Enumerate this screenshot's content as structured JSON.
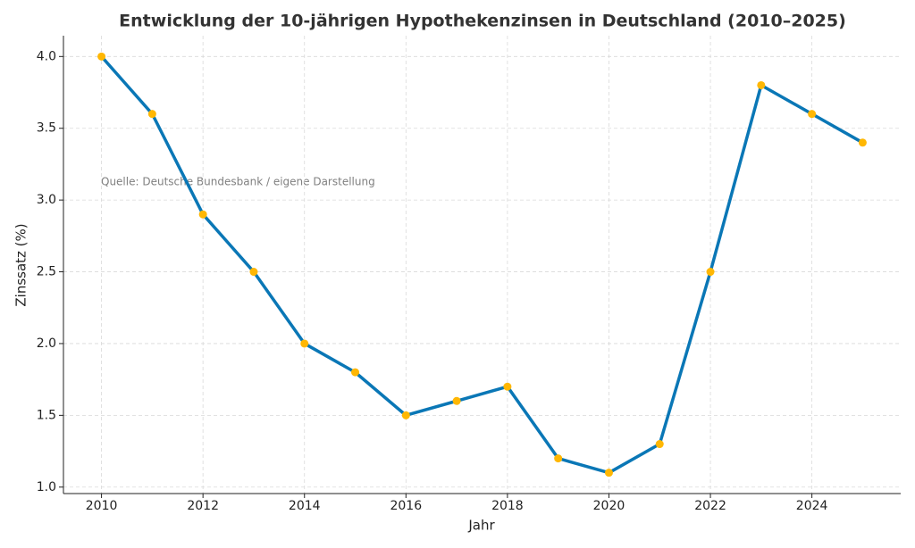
{
  "chart_data": {
    "type": "line",
    "title": "Entwicklung der 10-jährigen Hypothekenzinsen in Deutschland (2010–2025)",
    "x_label": "Jahr",
    "y_label": "Zinssatz (%)",
    "annotation": "Quelle: Deutsche Bundesbank / eigene Darstellung",
    "x": [
      2010,
      2011,
      2012,
      2013,
      2014,
      2015,
      2016,
      2017,
      2018,
      2019,
      2020,
      2021,
      2022,
      2023,
      2024,
      2025
    ],
    "values": [
      4.0,
      3.6,
      2.9,
      2.5,
      2.0,
      1.8,
      1.5,
      1.6,
      1.7,
      1.2,
      1.1,
      1.3,
      2.5,
      3.8,
      3.6,
      3.4
    ],
    "color": "#0a77b6",
    "marker_color": "#ffb703",
    "xlim": [
      2009.25,
      2025.75
    ],
    "ylim": [
      0.955,
      4.145
    ],
    "xticks": [
      2010,
      2012,
      2014,
      2016,
      2018,
      2020,
      2022,
      2024
    ],
    "yticks": [
      {
        "value": 1.0,
        "label": "1.0"
      },
      1.5,
      {
        "value": 2.0,
        "label": "2.0"
      },
      2.5,
      {
        "value": 3.0,
        "label": "3.0"
      },
      3.5,
      {
        "value": 4.0,
        "label": "4.0"
      }
    ],
    "grid": true
  }
}
